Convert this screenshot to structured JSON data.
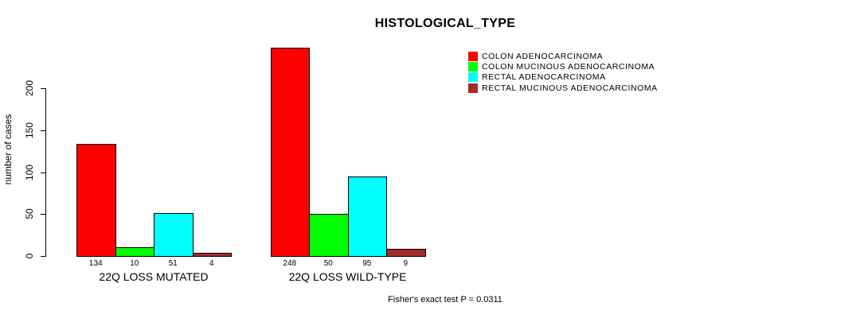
{
  "chart_data": {
    "type": "bar",
    "title": "HISTOLOGICAL_TYPE",
    "ylabel": "number of cases",
    "xlabel": "",
    "categories": [
      "22Q LOSS MUTATED",
      "22Q LOSS WILD-TYPE"
    ],
    "series": [
      {
        "name": "COLON ADENOCARCINOMA",
        "color": "#FF0000",
        "values": [
          134,
          248
        ]
      },
      {
        "name": "COLON MUCINOUS ADENOCARCINOMA",
        "color": "#00FF00",
        "values": [
          10,
          50
        ]
      },
      {
        "name": "RECTAL ADENOCARCINOMA",
        "color": "#00FFFF",
        "values": [
          51,
          95
        ]
      },
      {
        "name": "RECTAL MUCINOUS ADENOCARCINOMA",
        "color": "#A52A2A",
        "values": [
          4,
          9
        ]
      }
    ],
    "y_ticks": [
      0,
      50,
      100,
      150,
      200
    ],
    "ylim": [
      0,
      250
    ],
    "grid": false,
    "legend_position": "top-right",
    "bar_value_labels_shown": true,
    "annotation": "Fisher's exact test P = 0.0311"
  }
}
